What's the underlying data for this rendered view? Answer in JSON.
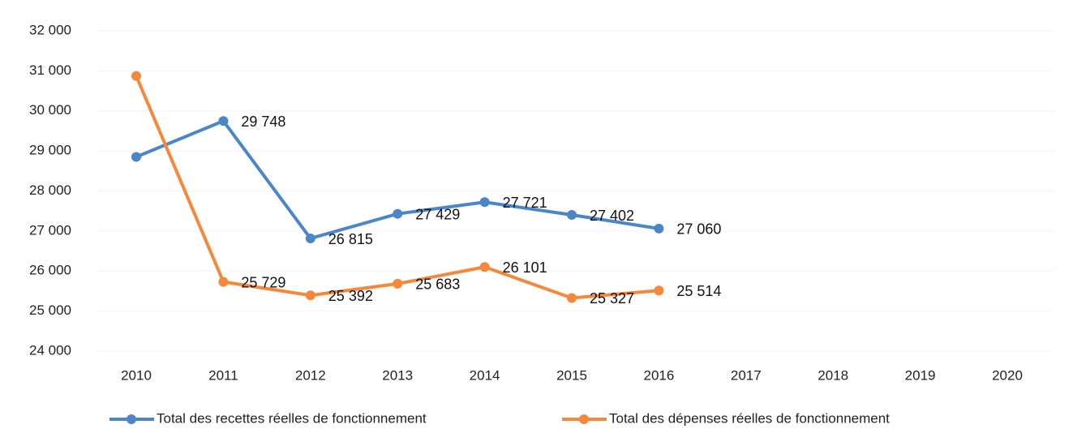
{
  "chart_data": {
    "type": "line",
    "categories": [
      "2010",
      "2011",
      "2012",
      "2013",
      "2014",
      "2015",
      "2016",
      "2017",
      "2018",
      "2019",
      "2020"
    ],
    "series": [
      {
        "name": "Total des recettes réelles de fonctionnement",
        "color": "#4a86c8",
        "values": [
          28850,
          29748,
          26815,
          27429,
          27721,
          27402,
          27060,
          null,
          null,
          null,
          null
        ],
        "value_labels": [
          null,
          "29 748",
          "26 815",
          "27 429",
          "27 721",
          "27 402",
          "27 060",
          null,
          null,
          null,
          null
        ]
      },
      {
        "name": "Total des dépenses réelles de fonctionnement",
        "color": "#f5883a",
        "values": [
          30870,
          25729,
          25392,
          25683,
          26101,
          25327,
          25514,
          null,
          null,
          null,
          null
        ],
        "value_labels": [
          null,
          "25 729",
          "25 392",
          "25 683",
          "26 101",
          "25 327",
          "25 514",
          null,
          null,
          null,
          null
        ]
      }
    ],
    "ylim": [
      24000,
      32000
    ],
    "yticks": [
      {
        "value": 24000,
        "label": "24 000"
      },
      {
        "value": 25000,
        "label": "25 000"
      },
      {
        "value": 26000,
        "label": "26 000"
      },
      {
        "value": 27000,
        "label": "27 000"
      },
      {
        "value": 28000,
        "label": "28 000"
      },
      {
        "value": 29000,
        "label": "29 000"
      },
      {
        "value": 30000,
        "label": "30 000"
      },
      {
        "value": 31000,
        "label": "31 000"
      },
      {
        "value": 32000,
        "label": "32 000"
      }
    ],
    "legend": "bottom"
  }
}
